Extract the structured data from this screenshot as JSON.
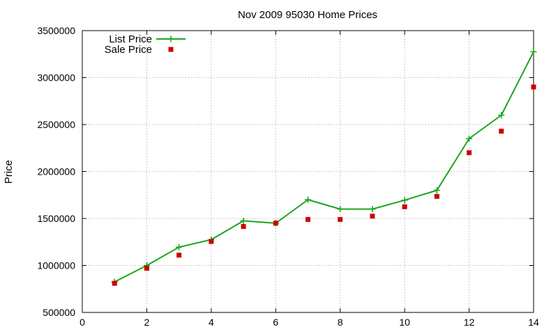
{
  "chart_data": {
    "type": "line",
    "title": "Nov 2009 95030 Home Prices",
    "xlabel": "",
    "ylabel": "Price",
    "xlim": [
      0,
      14
    ],
    "ylim": [
      500000,
      3500000
    ],
    "x_ticks": [
      "0",
      "2",
      "4",
      "6",
      "8",
      "10",
      "12",
      "14"
    ],
    "y_ticks": [
      "500000",
      "1000000",
      "1500000",
      "2000000",
      "2500000",
      "3000000",
      "3500000"
    ],
    "grid": true,
    "legend_position": "top-left",
    "series": [
      {
        "name": "List Price",
        "style": "line-with-plus-markers",
        "color": "#1aa61a",
        "x": [
          1,
          2,
          3,
          4,
          5,
          6,
          7,
          8,
          9,
          10,
          11,
          12,
          13,
          14
        ],
        "y": [
          825000,
          1000000,
          1195000,
          1275000,
          1475000,
          1450000,
          1700000,
          1600000,
          1600000,
          1695000,
          1800000,
          2350000,
          2600000,
          3275000
        ]
      },
      {
        "name": "Sale Price",
        "style": "square-markers",
        "color": "#cc0000",
        "x": [
          1,
          2,
          3,
          4,
          5,
          6,
          7,
          8,
          9,
          10,
          11,
          12,
          13,
          14
        ],
        "y": [
          810000,
          970000,
          1110000,
          1255000,
          1415000,
          1450000,
          1490000,
          1490000,
          1525000,
          1625000,
          1735000,
          2200000,
          2430000,
          2900000
        ]
      }
    ]
  }
}
